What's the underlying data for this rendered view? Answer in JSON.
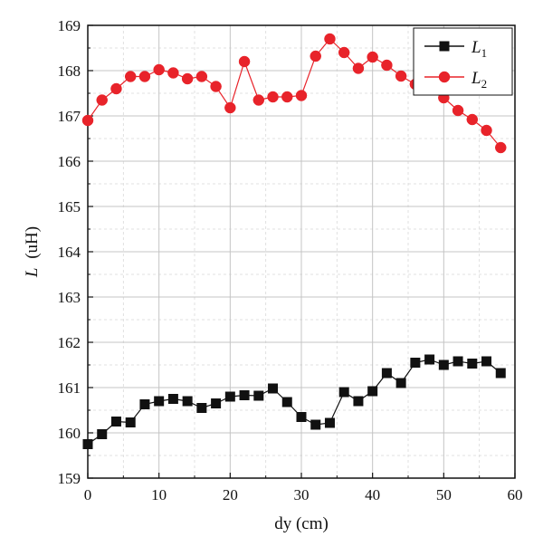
{
  "chart_data": {
    "type": "line",
    "xlabel": "dy (cm)",
    "ylabel_symbol": "L",
    "ylabel_unit": "(uH)",
    "xlim": [
      0,
      60
    ],
    "ylim": [
      159,
      169
    ],
    "x_ticks": [
      0,
      10,
      20,
      30,
      40,
      50,
      60
    ],
    "y_ticks": [
      159,
      160,
      161,
      162,
      163,
      164,
      165,
      166,
      167,
      168,
      169
    ],
    "grid": true,
    "legend_position": "top-right",
    "x": [
      0,
      2,
      4,
      6,
      8,
      10,
      12,
      14,
      16,
      18,
      20,
      22,
      24,
      26,
      28,
      30,
      32,
      34,
      36,
      38,
      40,
      42,
      44,
      46,
      48,
      50,
      52,
      54,
      56,
      58
    ],
    "series": [
      {
        "name": "L",
        "name_subscript": "1",
        "color": "#111111",
        "marker": "square",
        "values": [
          159.75,
          159.97,
          160.25,
          160.23,
          160.63,
          160.7,
          160.75,
          160.7,
          160.55,
          160.65,
          160.8,
          160.83,
          160.82,
          160.98,
          160.68,
          160.35,
          160.18,
          160.22,
          160.9,
          160.7,
          160.92,
          161.32,
          161.1,
          161.55,
          161.62,
          161.5,
          161.58,
          161.53,
          161.58,
          161.32
        ]
      },
      {
        "name": "L",
        "name_subscript": "2",
        "color": "#e8232a",
        "marker": "circle",
        "values": [
          166.9,
          167.35,
          167.6,
          167.87,
          167.87,
          168.02,
          167.95,
          167.82,
          167.87,
          167.65,
          167.18,
          168.2,
          167.35,
          167.42,
          167.42,
          167.45,
          168.32,
          168.7,
          168.4,
          168.05,
          168.3,
          168.12,
          167.88,
          167.7,
          167.62,
          167.4,
          167.12,
          166.92,
          166.68,
          166.3
        ]
      }
    ]
  }
}
